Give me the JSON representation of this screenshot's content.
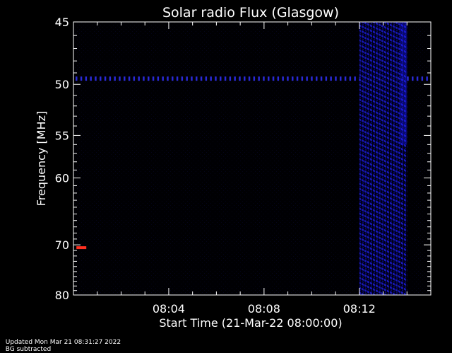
{
  "chart_data": {
    "type": "heatmap",
    "title": "Solar radio Flux (Glasgow)",
    "xlabel": "Start Time (21-Mar-22 08:00:00)",
    "ylabel": "Frequency [MHz]",
    "xlim": [
      "08:00:00",
      "08:15:00"
    ],
    "ylim": [
      45,
      80
    ],
    "x_ticks": [
      "08:04",
      "08:08",
      "08:12"
    ],
    "y_ticks": [
      45,
      50,
      55,
      60,
      70,
      80
    ],
    "y_scale": "reciprocal",
    "features": [
      {
        "kind": "horizontal-band",
        "frequency": 49.5,
        "x_range": [
          "08:00:00",
          "08:15:00"
        ],
        "color": "#2a2ad6"
      },
      {
        "kind": "broadband-activity",
        "x_range": [
          "08:12:00",
          "08:14:00"
        ],
        "y_range": [
          45,
          80
        ],
        "color": "#1a1aff"
      },
      {
        "kind": "point-burst",
        "x": "08:00:20",
        "frequency": 70.5,
        "color": "#ff3020"
      }
    ]
  },
  "footer": {
    "updated": "Updated Mon Mar 21 08:31:27 2022",
    "note": "BG subtracted"
  }
}
